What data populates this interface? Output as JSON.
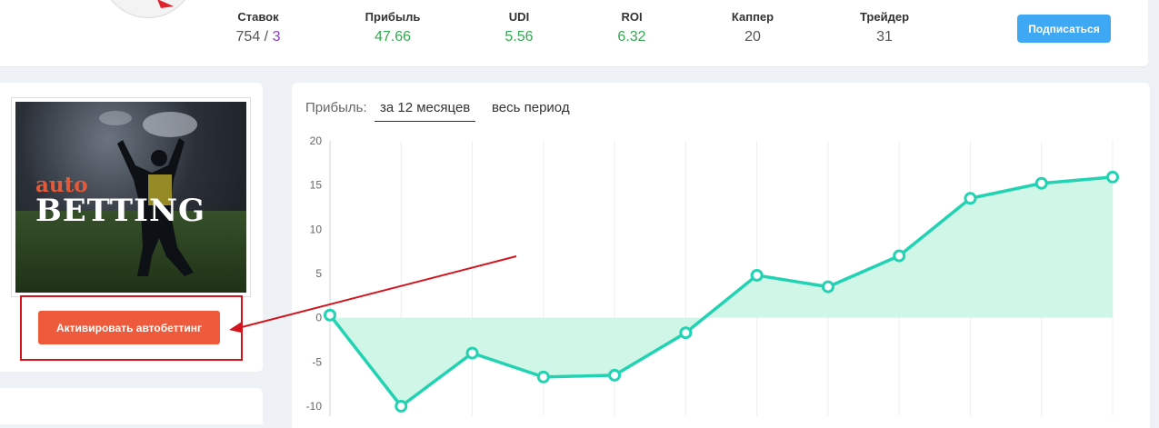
{
  "header": {
    "stats": [
      {
        "label": "Ставок",
        "value": "754",
        "sep": " / ",
        "extra": "3"
      },
      {
        "label": "Прибыль",
        "value": "47.66"
      },
      {
        "label": "UDI",
        "value": "5.56"
      },
      {
        "label": "ROI",
        "value": "6.32"
      },
      {
        "label": "Каппер",
        "value": "20"
      },
      {
        "label": "Трейдер",
        "value": "31"
      }
    ],
    "subscribe_label": "Подписаться"
  },
  "banner": {
    "line1": "auto",
    "line2": "BETTING"
  },
  "autobet_label": "Активировать автобеттинг",
  "profit_panel": {
    "label": "Прибыль:",
    "tabs": [
      "за 12 месяцев",
      "весь период"
    ],
    "active_tab": 0
  },
  "colors": {
    "accent_green": "#35a853",
    "line": "#22d3b3",
    "fill": "#ccf5e6",
    "button_blue": "#3fa8f4",
    "button_orange": "#ee5b3c",
    "annotation_red": "#d3141d"
  },
  "chart_data": {
    "type": "area",
    "title": "",
    "xlabel": "",
    "ylabel": "",
    "ylim": [
      -10,
      20
    ],
    "yticks": [
      20,
      15,
      10,
      5,
      0,
      -5,
      -10
    ],
    "grid": "vertical",
    "x": [
      1,
      2,
      3,
      4,
      5,
      6,
      7,
      8,
      9,
      10,
      11,
      12
    ],
    "series": [
      {
        "values": [
          0.3,
          -10,
          -4,
          -6.7,
          -6.5,
          -1.7,
          4.8,
          3.5,
          7,
          13.5,
          15.2,
          15.9
        ]
      }
    ]
  }
}
